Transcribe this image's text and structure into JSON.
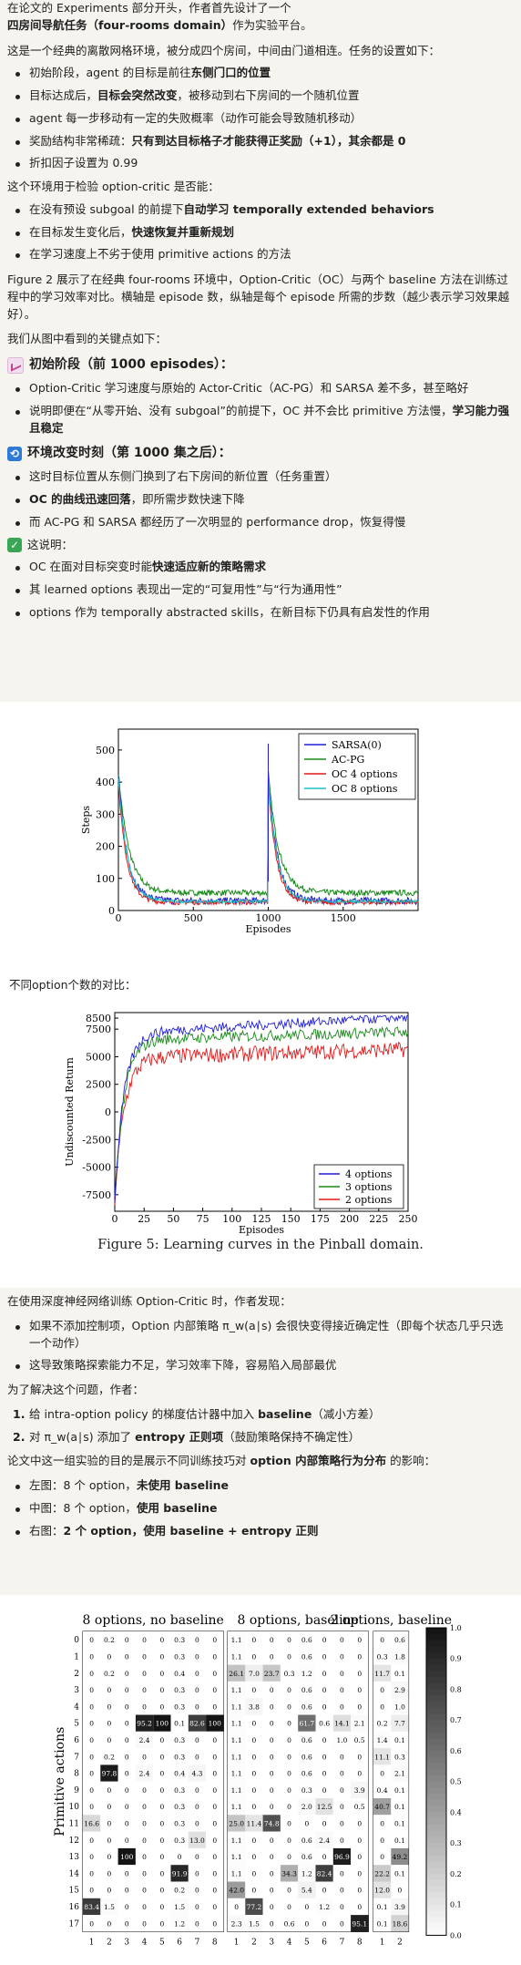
{
  "intro": {
    "p1a": "在论文的 Experiments 部分开头，作者首先设计了一个",
    "p1b": "四房间导航任务（four-rooms domain）",
    "p1c": "作为实验平台。",
    "p2": "这是一个经典的离散网格环境，被分成四个房间，中间由门道相连。任务的设置如下：",
    "bullets": [
      {
        "a": "初始阶段，agent 的目标是前往",
        "b": "东侧门口的位置",
        "c": ""
      },
      {
        "a": "目标达成后，",
        "b": "目标会突然改变",
        "c": "，被移动到右下房间的一个随机位置"
      },
      {
        "a": "agent 每一步移动有一定的失败概率（动作可能会导致随机移动）",
        "b": "",
        "c": ""
      },
      {
        "a": "奖励结构非常稀疏：",
        "b": "只有到达目标格子才能获得正奖励（+1），其余都是 0",
        "c": ""
      },
      {
        "a": "折扣因子设置为 0.99",
        "b": "",
        "c": ""
      }
    ],
    "p3": "这个环境用于检验 option-critic 是否能：",
    "bullets2": [
      {
        "a": "在没有预设 subgoal 的前提下",
        "b": "自动学习 temporally extended behaviors",
        "c": ""
      },
      {
        "a": "在目标发生变化后，",
        "b": "快速恢复并重新规划",
        "c": ""
      },
      {
        "a": "在学习速度上不劣于使用 primitive actions 的方法",
        "b": "",
        "c": ""
      }
    ],
    "p4": "Figure 2 展示了在经典 four-rooms 环境中，Option-Critic（OC）与两个 baseline 方法在训练过程中的学习效率对比。横轴是 episode 数，纵轴是每个 episode 所需的步数（越少表示学习效果越好）。",
    "p5": "我们从图中看到的关键点如下：",
    "h_initial": "初始阶段（前 1000 episodes）：",
    "b_initial": [
      {
        "a": "Option-Critic 学习速度与原始的 Actor-Critic（AC-PG）和 SARSA 差不多，甚至略好",
        "b": "",
        "c": ""
      },
      {
        "a": "说明即便在“从零开始、没有 subgoal”的前提下，OC 并不会比 primitive 方法慢，",
        "b": "学习能力强且稳定",
        "c": ""
      }
    ],
    "h_change": "环境改变时刻（第 1000 集之后）：",
    "b_change": [
      {
        "a": "这时目标位置从东侧门换到了右下房间的新位置（任务重置）",
        "b": "",
        "c": ""
      },
      {
        "a": "",
        "b": "OC 的曲线迅速回落",
        "c": "，即所需步数快速下降"
      },
      {
        "a": "而 AC-PG 和 SARSA 都经历了一次明显的 performance drop，恢复得慢",
        "b": "",
        "c": ""
      }
    ],
    "h_means": "这说明：",
    "b_means": [
      {
        "a": "OC 在面对目标突变时能",
        "b": "快速适应新的策略需求",
        "c": ""
      },
      {
        "a": "其 learned options 表现出一定的“可复用性”与“行为通用性”",
        "b": "",
        "c": ""
      },
      {
        "a": "options 作为 temporally abstracted skills，在新目标下仍具有启发性的作用",
        "b": "",
        "c": ""
      }
    ]
  },
  "fig2": {
    "ylabel": "Steps",
    "xlabel": "Episodes",
    "yticks": [
      "0",
      "100",
      "200",
      "300",
      "400",
      "500"
    ],
    "xticks": [
      "0",
      "500",
      "1000",
      "1500"
    ],
    "legend": [
      "SARSA(0)",
      "AC-PG",
      "OC 4 options",
      "OC 8 options"
    ],
    "colors": {
      "sarsa": "#1f1fd6",
      "acpg": "#1a8a1a",
      "oc4": "#e01818",
      "oc8": "#22c2c2"
    }
  },
  "mid_text": "不同option个数的对比：",
  "fig5": {
    "ylabel": "Undiscounted Return",
    "xlabel": "Episodes",
    "yticks": [
      "8500",
      "7500",
      "5000",
      "2500",
      "0",
      "-2500",
      "-5000",
      "-7500"
    ],
    "xticks": [
      "0",
      "25",
      "50",
      "75",
      "100",
      "125",
      "150",
      "175",
      "200",
      "225",
      "250"
    ],
    "legend": [
      "4 options",
      "3 options",
      "2 options"
    ],
    "colors": {
      "o4": "#1f1fd6",
      "o3": "#1a8a1a",
      "o2": "#e01818"
    },
    "caption": "Figure 5: Learning curves in the Pinball domain."
  },
  "deep": {
    "p1": "在使用深度神经网络训练 Option-Critic 时，作者发现：",
    "bullets": [
      {
        "a": "如果不添加控制项，Option 内部策略 π_w(a∣s) 会很快变得接近确定性（即每个状态几乎只选一个动作）",
        "b": "",
        "c": ""
      },
      {
        "a": "这导致策略探索能力不足，学习效率下降，容易陷入局部最优",
        "b": "",
        "c": ""
      }
    ],
    "p2": "为了解决这个问题，作者：",
    "steps": [
      {
        "n": "1.",
        "a": "给 intra-option policy 的梯度估计器中加入 ",
        "b": "baseline",
        "c": "（减小方差）"
      },
      {
        "n": "2.",
        "a": "对 π_w(a∣s) 添加了 ",
        "b": "entropy 正则项",
        "c": "（鼓励策略保持不确定性）"
      }
    ],
    "p3a": "论文中这一组实验的目的是展示不同训练技巧对 ",
    "p3b": "option 内部策略行为分布",
    "p3c": " 的影响：",
    "bullets2": [
      {
        "a": "左图：8 个 option，",
        "b": "未使用 baseline",
        "c": ""
      },
      {
        "a": "中图：8 个 option，",
        "b": "使用 baseline",
        "c": ""
      },
      {
        "a": "右图：",
        "b": "2 个 option，使用 baseline + entropy 正则",
        "c": ""
      }
    ]
  },
  "heat": {
    "titles": [
      "8 options, no baseline",
      "8 options, baseline",
      "2 options, baseline"
    ],
    "ylabel": "Primitive actions",
    "rows": [
      "0",
      "1",
      "2",
      "3",
      "4",
      "5",
      "6",
      "7",
      "8",
      "9",
      "10",
      "11",
      "12",
      "13",
      "14",
      "15",
      "16",
      "17"
    ],
    "cols8": [
      "1",
      "2",
      "3",
      "4",
      "5",
      "6",
      "7",
      "8"
    ],
    "cols2": [
      "1",
      "2"
    ],
    "cbar": [
      "1.0",
      "0.9",
      "0.8",
      "0.7",
      "0.6",
      "0.5",
      "0.4",
      "0.3",
      "0.2",
      "0.1",
      "0.0"
    ],
    "left": [
      [
        "0",
        "0.2",
        "0",
        "0",
        "0",
        "0.3",
        "0",
        "0"
      ],
      [
        "0",
        "0",
        "0",
        "0",
        "0",
        "0.3",
        "0",
        "0"
      ],
      [
        "0",
        "0.2",
        "0",
        "0",
        "0",
        "0.4",
        "0",
        "0"
      ],
      [
        "0",
        "0",
        "0",
        "0",
        "0",
        "0.3",
        "0",
        "0"
      ],
      [
        "0",
        "0",
        "0",
        "0",
        "0",
        "0.3",
        "0",
        "0"
      ],
      [
        "0",
        "0",
        "0",
        "95.2",
        "100",
        "0.1",
        "82.6",
        "100"
      ],
      [
        "0",
        "0",
        "0",
        "2.4",
        "0",
        "0.3",
        "0",
        "0"
      ],
      [
        "0",
        "0.2",
        "0",
        "0",
        "0",
        "0.3",
        "0",
        "0"
      ],
      [
        "0",
        "97.8",
        "0",
        "2.4",
        "0",
        "0.4",
        "4.3",
        "0"
      ],
      [
        "0",
        "0",
        "0",
        "0",
        "0",
        "0.3",
        "0",
        "0"
      ],
      [
        "0",
        "0",
        "0",
        "0",
        "0",
        "0.3",
        "0",
        "0"
      ],
      [
        "16.6",
        "0",
        "0",
        "0",
        "0",
        "0.3",
        "0",
        "0"
      ],
      [
        "0",
        "0",
        "0",
        "0",
        "0",
        "0.3",
        "13.0",
        "0"
      ],
      [
        "0",
        "0",
        "100",
        "0",
        "0",
        "0",
        "0",
        "0"
      ],
      [
        "0",
        "0",
        "0",
        "0",
        "0",
        "91.9",
        "0",
        "0"
      ],
      [
        "0",
        "0",
        "0",
        "0",
        "0",
        "0.2",
        "0",
        "0"
      ],
      [
        "83.4",
        "1.5",
        "0",
        "0",
        "0",
        "1.5",
        "0",
        "0"
      ],
      [
        "0",
        "0",
        "0",
        "0",
        "0",
        "1.2",
        "0",
        "0"
      ]
    ],
    "middle": [
      [
        "1.1",
        "0",
        "0",
        "0",
        "0.6",
        "0",
        "0",
        "0"
      ],
      [
        "1.1",
        "0",
        "0",
        "0",
        "0.6",
        "0",
        "0",
        "0"
      ],
      [
        "26.1",
        "7.0",
        "23.7",
        "0.3",
        "1.2",
        "0",
        "0",
        "0"
      ],
      [
        "1.1",
        "0",
        "0",
        "0",
        "0.6",
        "0",
        "0",
        "0"
      ],
      [
        "1.1",
        "3.8",
        "0",
        "0",
        "0.6",
        "0",
        "0",
        "0"
      ],
      [
        "1.1",
        "0",
        "0",
        "0",
        "61.7",
        "0.6",
        "14.1",
        "2.1"
      ],
      [
        "1.1",
        "0",
        "0",
        "0",
        "0.6",
        "0",
        "1.0",
        "0.5"
      ],
      [
        "1.1",
        "0",
        "0",
        "0",
        "0.6",
        "0",
        "0",
        "0"
      ],
      [
        "1.1",
        "0",
        "0",
        "0",
        "0.6",
        "0",
        "0",
        "0"
      ],
      [
        "1.1",
        "0",
        "0",
        "0",
        "0.3",
        "0",
        "0",
        "3.9"
      ],
      [
        "1.1",
        "0",
        "0",
        "0",
        "2.0",
        "12.5",
        "0",
        "0.5"
      ],
      [
        "25.0",
        "11.4",
        "74.8",
        "0",
        "0",
        "0",
        "0",
        "0"
      ],
      [
        "1.1",
        "0",
        "0",
        "0",
        "0.6",
        "2.4",
        "0",
        "0"
      ],
      [
        "1.1",
        "0",
        "0",
        "0",
        "0.6",
        "0",
        "96.9",
        "0"
      ],
      [
        "1.1",
        "0",
        "0",
        "34.3",
        "1.2",
        "82.4",
        "0",
        "0"
      ],
      [
        "42.0",
        "0",
        "0",
        "0",
        "5.4",
        "0",
        "0",
        "0"
      ],
      [
        "0",
        "77.2",
        "0",
        "0",
        "0",
        "1.2",
        "0",
        "0"
      ],
      [
        "2.3",
        "1.5",
        "0",
        "0.6",
        "0",
        "0",
        "0",
        "95.1"
      ]
    ],
    "middle_fix": [
      [
        "1.1",
        "0",
        "0",
        "0",
        "0.6",
        "0",
        "0",
        "0"
      ],
      [
        "1.1",
        "0",
        "0",
        "0",
        "0.6",
        "0",
        "0",
        "0"
      ],
      [
        "26.1",
        "7.0",
        "23.7",
        "0.3",
        "1.2",
        "0",
        "0",
        "0"
      ],
      [
        "1.1",
        "0",
        "0",
        "0",
        "0.6",
        "0",
        "0",
        "0"
      ],
      [
        "1.1",
        "3.8",
        "0",
        "0",
        "0.6",
        "0",
        "0",
        "0"
      ],
      [
        "1.1",
        "0",
        "0",
        "0",
        "61.7",
        "0.6",
        "14.1",
        "2.1"
      ],
      [
        "1.1",
        "0",
        "0",
        "0",
        "0.6",
        "0",
        "1.0",
        "0.5"
      ],
      [
        "1.1",
        "0",
        "0",
        "0",
        "0.6",
        "0",
        "0",
        "0"
      ],
      [
        "1.1",
        "0",
        "0",
        "0",
        "0.6",
        "0",
        "0",
        "0"
      ],
      [
        "1.1",
        "0",
        "0",
        "0",
        "0.3",
        "0",
        "0",
        "3.9"
      ],
      [
        "1.1",
        "0",
        "0",
        "0",
        "2.0",
        "12.5",
        "0",
        "0.5"
      ],
      [
        "25.0",
        "11.4",
        "74.8",
        "0",
        "0",
        "0",
        "0",
        "0"
      ],
      [
        "1.1",
        "0",
        "0",
        "0",
        "0.6",
        "2.4",
        "0",
        "0"
      ],
      [
        "1.1",
        "0",
        "0",
        "0",
        "0.6",
        "0",
        "96.9",
        "0"
      ],
      [
        "1.1",
        "0",
        "0",
        "34.3",
        "1.2",
        "82.4",
        "0",
        "0"
      ],
      [
        "42.0",
        "0",
        "0",
        "0",
        "5.4",
        "0",
        "0",
        "0"
      ],
      [
        "0",
        "77.2",
        "0",
        "0",
        "0",
        "1.2",
        "0",
        "0"
      ],
      [
        "2.3",
        "1.5",
        "0",
        "0.6",
        "0",
        "0",
        "0",
        "95.1"
      ]
    ],
    "right": [
      [
        "0",
        "0.6"
      ],
      [
        "0.3",
        "1.8"
      ],
      [
        "11.7",
        "0.1"
      ],
      [
        "0",
        "2.9"
      ],
      [
        "0",
        "1.0"
      ],
      [
        "0.2",
        "7.7"
      ],
      [
        "1.4",
        "0.1"
      ],
      [
        "11.1",
        "0.3"
      ],
      [
        "0",
        "2.1"
      ],
      [
        "0.4",
        "0.1"
      ],
      [
        "40.7",
        "0.1"
      ],
      [
        "0",
        "0.1"
      ],
      [
        "0",
        "0.1"
      ],
      [
        "0",
        "49.2"
      ],
      [
        "22.2",
        "0.1"
      ],
      [
        "12.0",
        "0"
      ],
      [
        "0.1",
        "3.9"
      ],
      [
        "0.1",
        "18.6"
      ]
    ]
  }
}
